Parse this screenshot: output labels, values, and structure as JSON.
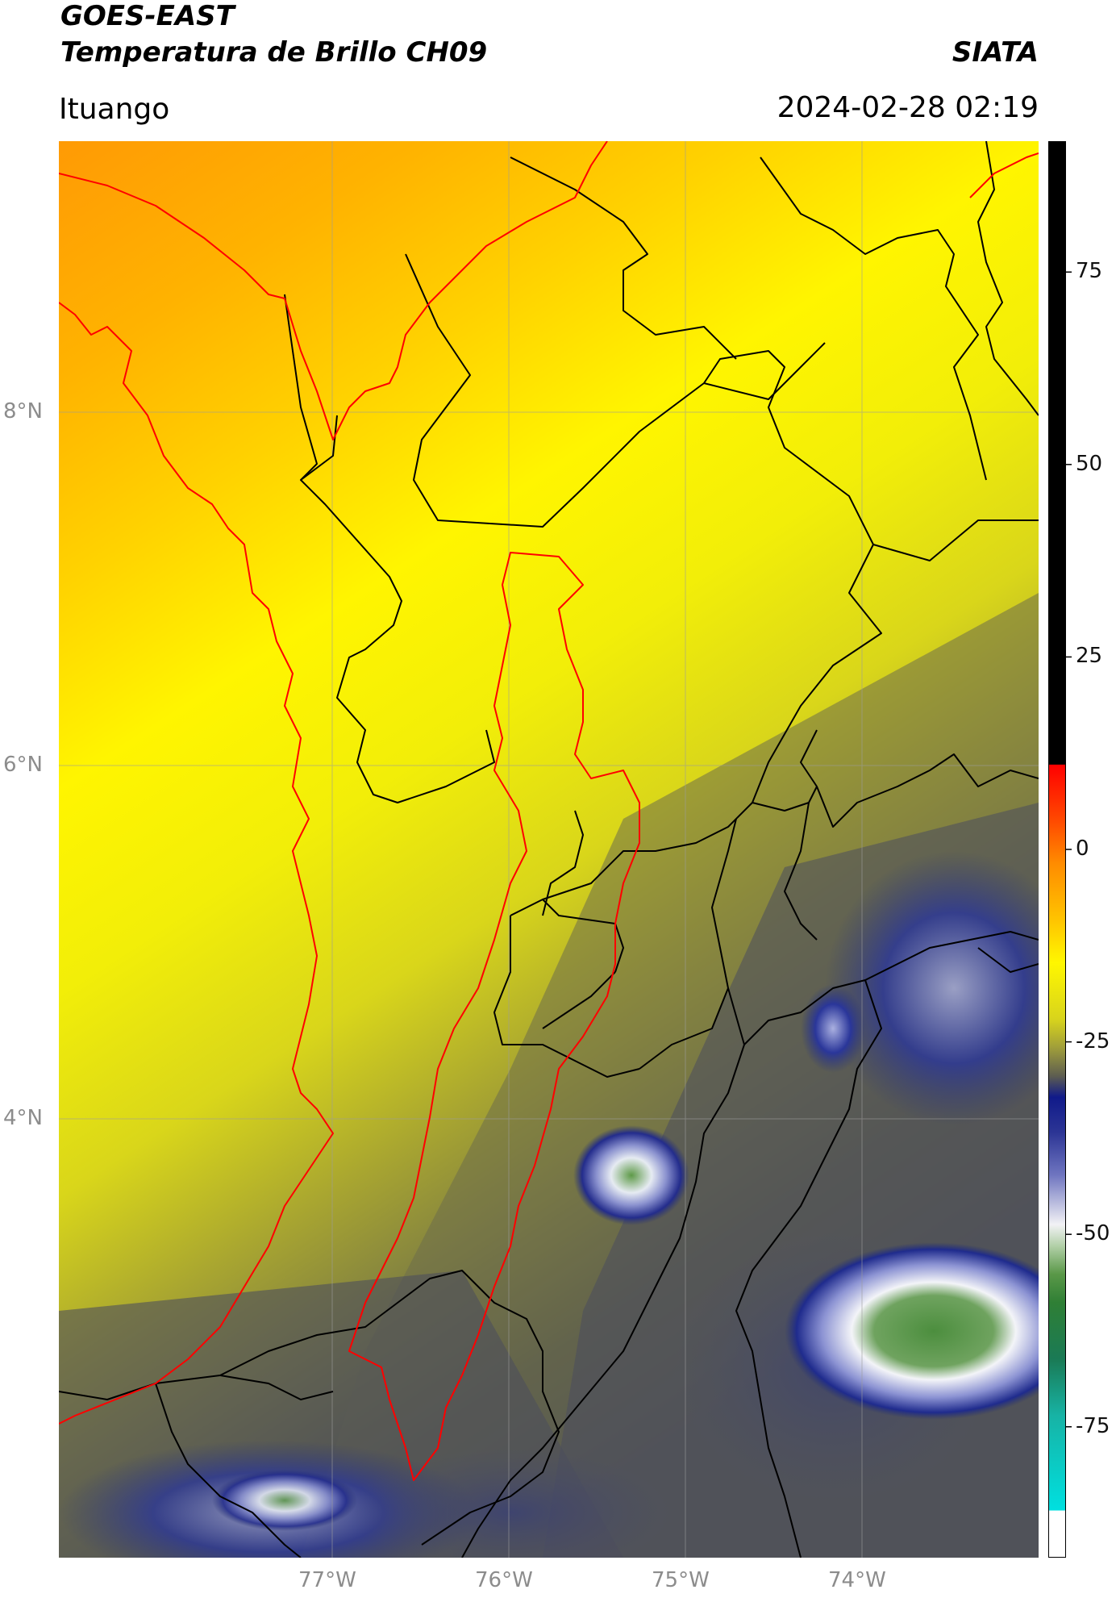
{
  "header": {
    "title_line1": "GOES-EAST",
    "title_line2": "Temperatura de Brillo CH09",
    "brand": "SIATA",
    "location": "Ituango",
    "datetime": "2024-02-28 02:19"
  },
  "map": {
    "lat_labels": [
      "8°N",
      "6°N",
      "4°N"
    ],
    "lon_labels": [
      "77°W",
      "76°W",
      "75°W",
      "74°W"
    ],
    "colors": {
      "border_department": "#000000",
      "border_coast_basin": "#ff0000"
    }
  },
  "colorbar": {
    "ticks": [
      "75",
      "50",
      "25",
      "0",
      "-25",
      "-50",
      "-75"
    ],
    "tick_values": [
      75,
      50,
      25,
      0,
      -25,
      -50,
      -75
    ],
    "range": [
      -92,
      92
    ]
  }
}
